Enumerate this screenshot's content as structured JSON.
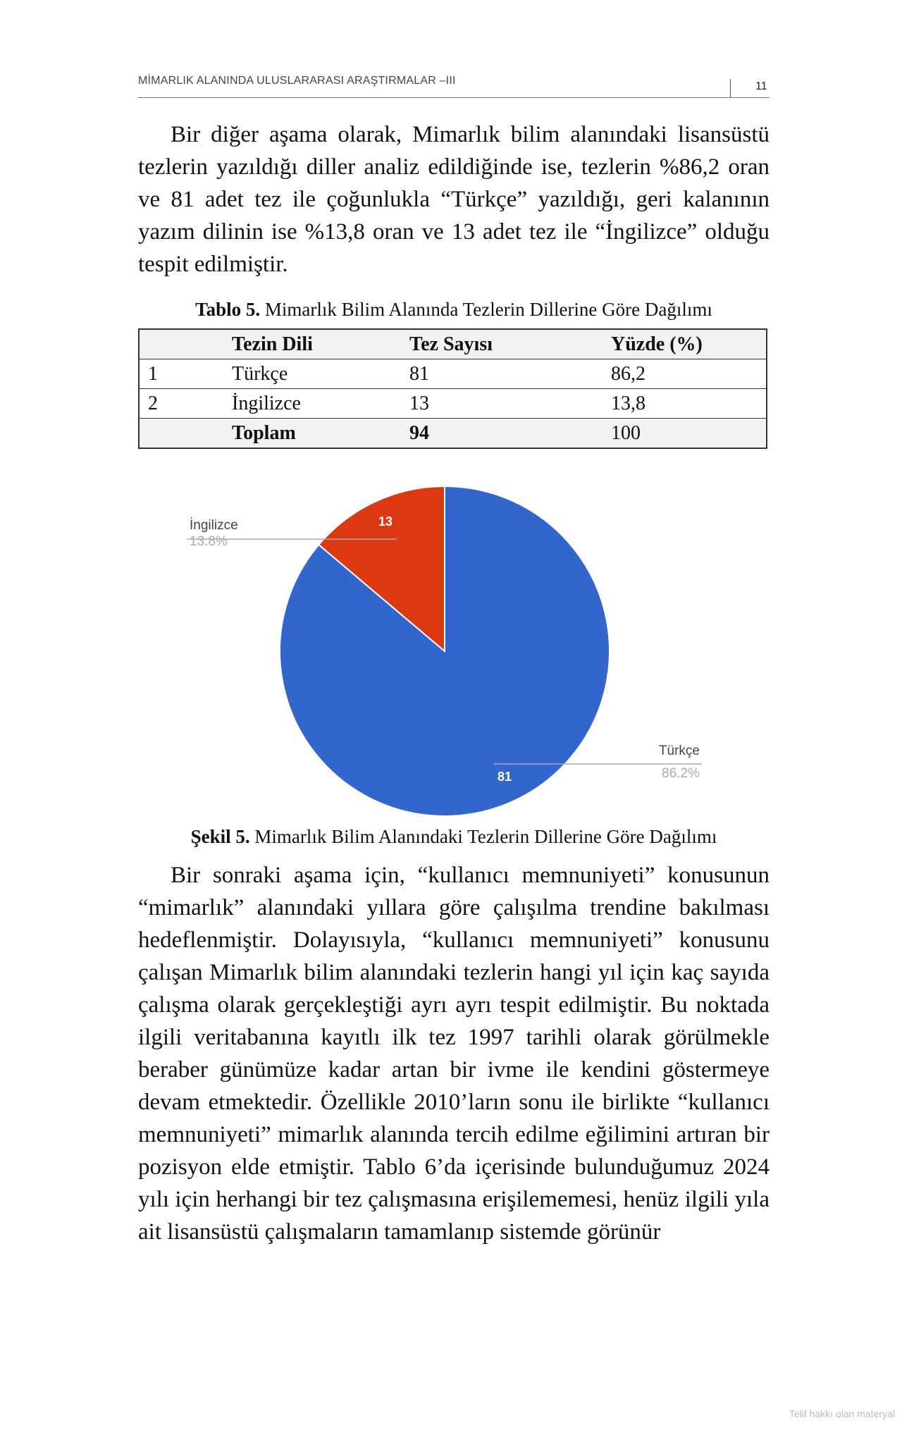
{
  "header": {
    "title": "MİMARLIK ALANINDA ULUSLARARASI ARAŞTIRMALAR –III",
    "page_number": "11"
  },
  "paragraph1": "Bir diğer aşama olarak, Mimarlık bilim alanındaki lisansüstü tezlerin yazıldığı diller analiz edildiğinde ise, tezlerin %86,2 oran ve 81 adet tez ile çoğunlukla “Türkçe” yazıldığı, geri kalanının yazım dilinin ise %13,8 oran ve 13 adet tez ile “İngilizce” olduğu tespit edilmiştir.",
  "table": {
    "caption_label": "Tablo 5.",
    "caption_text": "Mimarlık Bilim Alanında Tezlerin Dillerine Göre Dağılımı",
    "columns": [
      "Tezin Dili",
      "Tez Sayısı",
      "Yüzde (%)"
    ],
    "rows": [
      [
        "1",
        "Türkçe",
        "81",
        "86,2"
      ],
      [
        "2",
        "İngilizce",
        "13",
        "13,8"
      ]
    ],
    "total": [
      "Toplam",
      "94",
      "100"
    ]
  },
  "chart_data": {
    "type": "pie",
    "categories": [
      "Türkçe",
      "İngilizce"
    ],
    "values": [
      81,
      13
    ],
    "percent_labels": [
      "86.2%",
      "13.8%"
    ],
    "colors": [
      "#3366cc",
      "#dc3912"
    ]
  },
  "figure": {
    "caption_label": "Şekil 5.",
    "caption_text": "Mimarlık Bilim Alanındaki Tezlerin Dillerine Göre Dağılımı"
  },
  "paragraph2": "Bir sonraki aşama için, “kullanıcı memnuniyeti” konusunun “mimarlık” alanındaki yıllara göre çalışılma trendine bakılması hedeflenmiştir. Dolayısıyla, “kullanıcı memnuniyeti” konusunu çalışan Mimarlık bilim alanındaki tezlerin hangi yıl için kaç sayıda çalışma olarak gerçekleştiği ayrı ayrı tespit edilmiştir. Bu noktada ilgili veritabanına kayıtlı ilk tez 1997 tarihli olarak görülmekle beraber günümüze kadar artan bir ivme ile kendini göstermeye devam etmektedir. Özellikle 2010’ların sonu ile birlikte “kullanıcı memnuniyeti” mimarlık alanında tercih edilme eğilimini artıran bir pozisyon elde etmiştir. Tablo 6’da içerisinde bulunduğumuz 2024 yılı için herhangi bir tez çalışmasına erişilememesi, henüz ilgili yıla ait lisansüstü çalışmaların tamamlanıp sistemde görünür",
  "footer": "Telif hakkı olan materyal"
}
